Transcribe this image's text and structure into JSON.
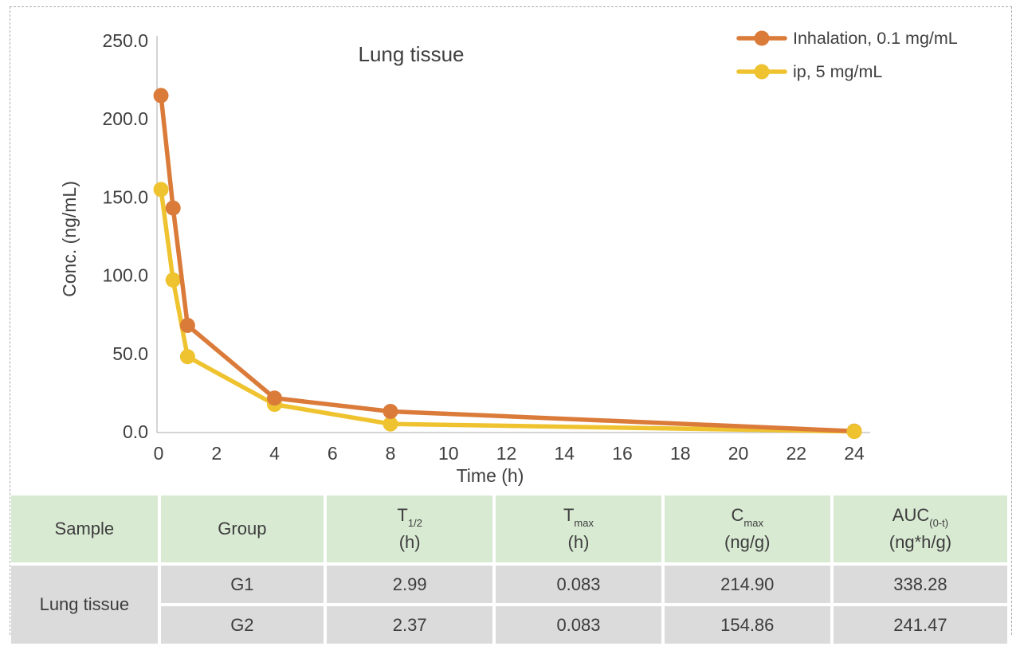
{
  "page": {
    "background": "#ffffff",
    "dashed_border_color": "#ababab"
  },
  "chart": {
    "title": "Lung tissue",
    "x_label": "Time (h)",
    "y_label": "Conc. (ng/mL)",
    "text_color": "#3f3f3f",
    "axis_color": "#c6c6c6",
    "y_ticks": [
      "0.0",
      "50.0",
      "100.0",
      "150.0",
      "200.0",
      "250.0"
    ],
    "x_ticks": [
      0,
      2,
      4,
      6,
      8,
      10,
      12,
      14,
      16,
      18,
      20,
      22,
      24
    ]
  },
  "chart_data": {
    "type": "line",
    "title": "Lung tissue",
    "xlabel": "Time (h)",
    "ylabel": "Conc. (ng/mL)",
    "xlim": [
      0,
      24
    ],
    "ylim": [
      0,
      250
    ],
    "grid": false,
    "legend_position": "top-right",
    "x": [
      0.083,
      0.5,
      1,
      4,
      8,
      24
    ],
    "series": [
      {
        "name": "Inhalation, 0.1 mg/mL",
        "color": "#db7b3a",
        "values": [
          214.9,
          143,
          68,
          21.5,
          13,
          0.4
        ]
      },
      {
        "name": "ip, 5 mg/mL",
        "color": "#efc32f",
        "values": [
          154.86,
          97,
          48,
          17.5,
          5,
          0.2
        ],
        "last_point_on_top": true
      }
    ]
  },
  "table": {
    "header_bg": "#d9ead3",
    "row_bg": "#dbdbdb",
    "columns": [
      {
        "label": "Sample"
      },
      {
        "label": "Group"
      },
      {
        "label": "T",
        "sub": "1/2",
        "unit": "(h)"
      },
      {
        "label": "T",
        "sub": "max",
        "unit": "(h)"
      },
      {
        "label": "C",
        "sub": "max",
        "unit": "(ng/g)"
      },
      {
        "label": "AUC",
        "sub": "(0-t)",
        "unit": "(ng*h/g)"
      }
    ],
    "rows": [
      {
        "sample": "Lung tissue",
        "group": "G1",
        "t_half": "2.99",
        "t_max": "0.083",
        "c_max": "214.90",
        "auc": "338.28"
      },
      {
        "group": "G2",
        "t_half": "2.37",
        "t_max": "0.083",
        "c_max": "154.86",
        "auc": "241.47"
      }
    ]
  }
}
